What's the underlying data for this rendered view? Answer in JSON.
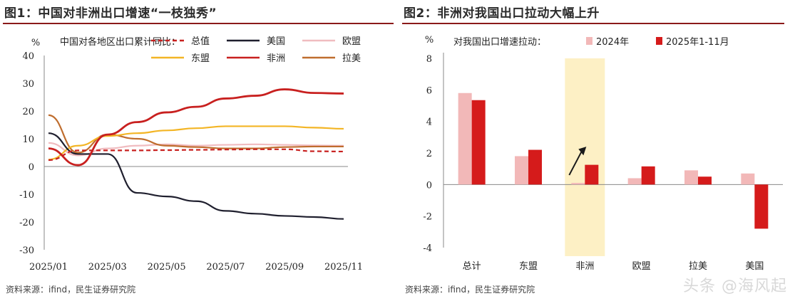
{
  "figure1": {
    "title": "图1：中国对非洲出口增速“一枝独秀”",
    "source": "资料来源：ifind，民生证券研究院"
  },
  "figure2": {
    "title": "图2：非洲对我国出口拉动大幅上升",
    "source": "资料来源：ifind，民生证券研究院"
  },
  "watermark": "头条 @海风起",
  "chart_data": [
    {
      "type": "line",
      "title": "中国对各地区出口累计同比：",
      "unit": "%",
      "xlabel": "",
      "ylabel": "",
      "ylim": [
        -30,
        40
      ],
      "yticks": [
        -30,
        -20,
        -10,
        0,
        10,
        20,
        30,
        40
      ],
      "x": [
        "2025/01",
        "2025/02",
        "2025/03",
        "2025/04",
        "2025/05",
        "2025/06",
        "2025/07",
        "2025/08",
        "2025/09",
        "2025/10",
        "2025/11"
      ],
      "xtick_labels": [
        "2025/01",
        "2025/03",
        "2025/05",
        "2025/07",
        "2025/09",
        "2025/11"
      ],
      "grid": false,
      "legend_position": "top",
      "series": [
        {
          "name": "总值",
          "color": "#c8201f",
          "dash": true,
          "values": [
            2.3,
            5.8,
            5.8,
            5.8,
            5.9,
            6.0,
            6.1,
            6.2,
            6.2,
            5.5,
            5.4
          ]
        },
        {
          "name": "美国",
          "color": "#1f1f2e",
          "dash": false,
          "values": [
            12.0,
            4.5,
            4.5,
            -9.5,
            -10.8,
            -12.5,
            -16.0,
            -17.0,
            -17.8,
            -18.2,
            -18.9
          ]
        },
        {
          "name": "欧盟",
          "color": "#f0bcc0",
          "dash": false,
          "values": [
            8.5,
            4.0,
            6.5,
            7.5,
            8.0,
            7.5,
            7.8,
            8.0,
            7.8,
            7.6,
            7.5
          ]
        },
        {
          "name": "东盟",
          "color": "#f3b525",
          "dash": false,
          "values": [
            2.5,
            7.5,
            11.0,
            12.0,
            13.0,
            13.8,
            14.5,
            14.5,
            14.5,
            14.0,
            13.6
          ]
        },
        {
          "name": "非洲",
          "color": "#c8201f",
          "dash": false,
          "values": [
            6.5,
            0.5,
            11.5,
            16.0,
            19.5,
            21.5,
            24.5,
            25.5,
            27.8,
            26.5,
            26.3
          ]
        },
        {
          "name": "拉美",
          "color": "#bf6d2e",
          "dash": false,
          "values": [
            18.5,
            5.0,
            11.5,
            10.0,
            7.5,
            7.0,
            6.5,
            6.5,
            7.0,
            7.2,
            7.2
          ]
        }
      ]
    },
    {
      "type": "bar",
      "title": "对我国出口增速拉动：",
      "unit": "%",
      "xlabel": "",
      "ylabel": "",
      "ylim": [
        -4,
        8
      ],
      "yticks": [
        -4,
        -2,
        0,
        2,
        4,
        6,
        8
      ],
      "categories": [
        "总计",
        "东盟",
        "非洲",
        "欧盟",
        "拉美",
        "美国"
      ],
      "highlight_category": "非洲",
      "grid": false,
      "legend_position": "top",
      "series": [
        {
          "name": "2024年",
          "color": "#f2b8b8",
          "values": [
            5.8,
            1.8,
            0.1,
            0.4,
            0.9,
            0.7
          ]
        },
        {
          "name": "2025年1-11月",
          "color": "#d51b1b",
          "values": [
            5.35,
            2.2,
            1.25,
            1.15,
            0.5,
            -2.8
          ]
        }
      ]
    }
  ]
}
